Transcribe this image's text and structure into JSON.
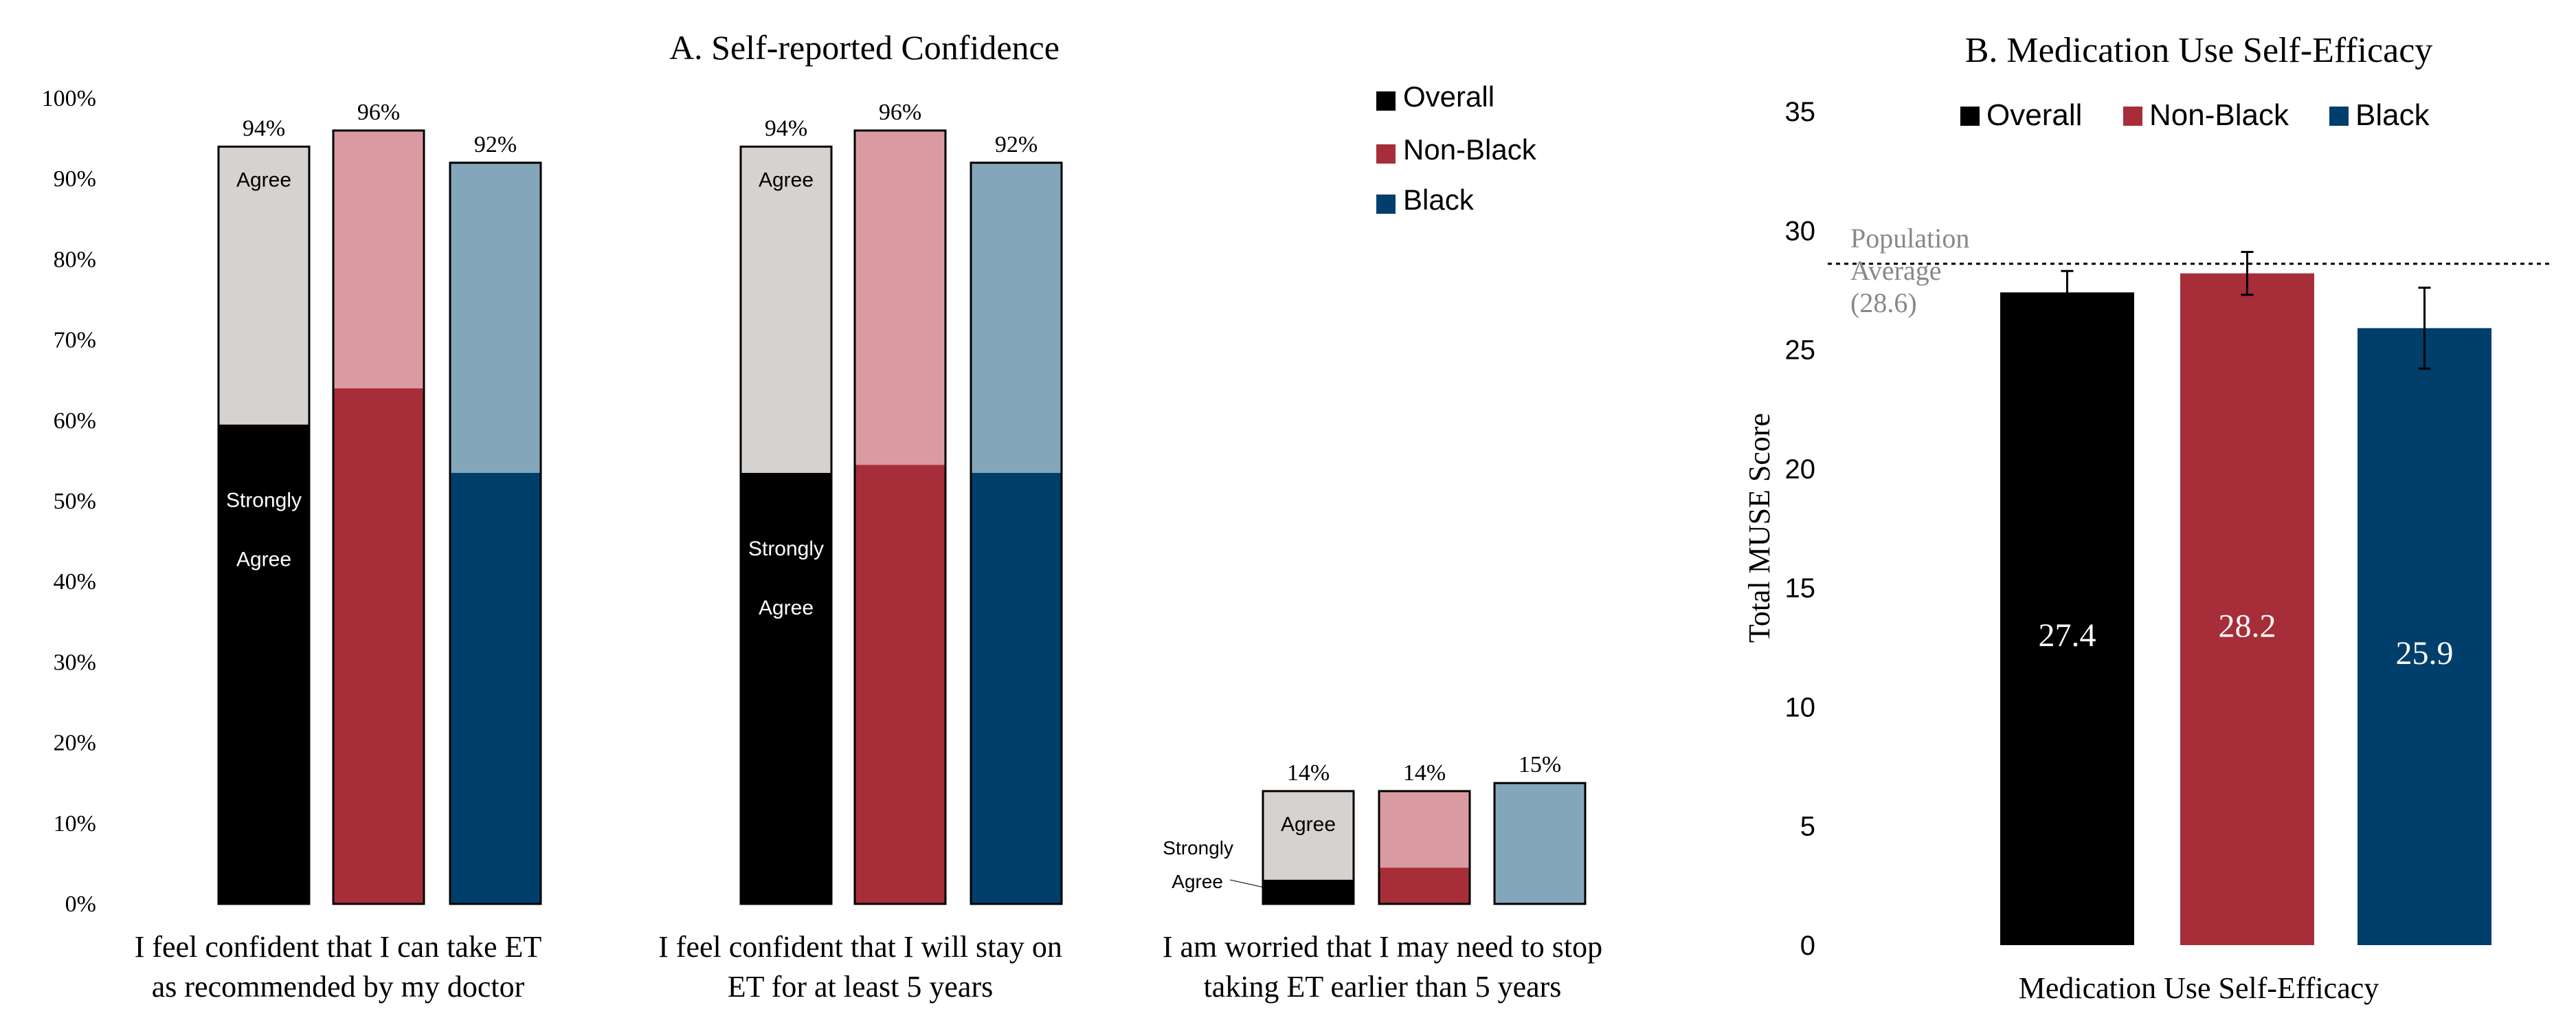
{
  "chart_data": [
    {
      "panel": "A",
      "type": "bar",
      "stacked": true,
      "title": "A. Self-reported  Confidence",
      "ylim": [
        0,
        100
      ],
      "y_ticks": [
        "0%",
        "10%",
        "20%",
        "30%",
        "40%",
        "50%",
        "60%",
        "70%",
        "80%",
        "90%",
        "100%"
      ],
      "legend": {
        "position": "top-right",
        "entries": [
          "Overall",
          "Non-Black",
          "Black"
        ]
      },
      "groups": [
        {
          "label_lines": [
            "I feel confident that I can take ET",
            "as recommended by my doctor"
          ],
          "bars": [
            {
              "series": "Overall",
              "strongly_agree": 59.5,
              "total": 94,
              "total_label": "94%",
              "agree_label": "Agree",
              "strong_label_lines": [
                "Strongly",
                "Agree"
              ]
            },
            {
              "series": "Non-Black",
              "strongly_agree": 64,
              "total": 96,
              "total_label": "96%"
            },
            {
              "series": "Black",
              "strongly_agree": 53.5,
              "total": 92,
              "total_label": "92%"
            }
          ]
        },
        {
          "label_lines": [
            "I feel confident that I will stay on",
            "ET for at least 5 years"
          ],
          "bars": [
            {
              "series": "Overall",
              "strongly_agree": 53.5,
              "total": 94,
              "total_label": "94%",
              "agree_label": "Agree",
              "strong_label_lines": [
                "Strongly",
                "Agree"
              ]
            },
            {
              "series": "Non-Black",
              "strongly_agree": 54.5,
              "total": 96,
              "total_label": "96%"
            },
            {
              "series": "Black",
              "strongly_agree": 53.5,
              "total": 92,
              "total_label": "92%"
            }
          ]
        },
        {
          "label_lines": [
            "I am worried that I may need to stop",
            "taking ET earlier than 5 years"
          ],
          "bars": [
            {
              "series": "Overall",
              "strongly_agree": 3,
              "total": 14,
              "total_label": "14%",
              "agree_label": "Agree",
              "callout_lines": [
                "Strongly",
                "Agree"
              ]
            },
            {
              "series": "Non-Black",
              "strongly_agree": 4.5,
              "total": 14,
              "total_label": "14%"
            },
            {
              "series": "Black",
              "strongly_agree": 0,
              "total": 15,
              "total_label": "15%"
            }
          ]
        }
      ]
    },
    {
      "panel": "B",
      "type": "bar",
      "title": "B. Medication Use Self-Efficacy",
      "xlabel": "Medication Use Self-Efficacy",
      "ylabel": "Total MUSE Score",
      "ylim": [
        0,
        35
      ],
      "y_ticks": [
        "0",
        "5",
        "10",
        "15",
        "20",
        "25",
        "30",
        "35"
      ],
      "legend": {
        "position": "top",
        "entries": [
          "Overall",
          "Non-Black",
          "Black"
        ]
      },
      "categories": [
        "Overall",
        "Non-Black",
        "Black"
      ],
      "values": [
        27.4,
        28.2,
        25.9
      ],
      "value_labels": [
        "27.4",
        "28.2",
        "25.9"
      ],
      "error_bars": [
        [
          26.6,
          28.3
        ],
        [
          27.3,
          29.1
        ],
        [
          24.2,
          27.6
        ]
      ],
      "reference_line": {
        "value": 28.6,
        "label_lines": [
          "Population",
          "Average",
          "(28.6)"
        ]
      }
    }
  ],
  "colors": {
    "Overall": {
      "strong": "#000000",
      "agree": "#d6d2cf"
    },
    "Non-Black": {
      "strong": "#a72d39",
      "agree": "#d99ba1"
    },
    "Black": {
      "strong": "#003f6b",
      "agree": "#84a6bb"
    },
    "axis_text": "#000000",
    "ref_text": "#888888"
  }
}
